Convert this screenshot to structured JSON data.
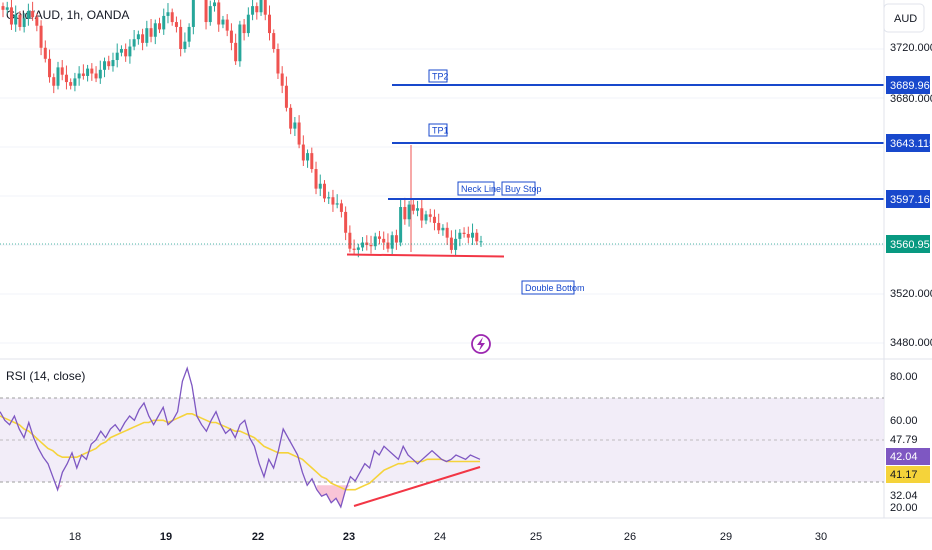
{
  "header": {
    "symbol_line": "Gold/AUD, 1h, OANDA",
    "currency": "AUD"
  },
  "colors": {
    "up": "#26a69a",
    "down": "#ef5350",
    "level": "#1848cc",
    "neckline_support": "#f23645",
    "current_price_bg": "#089981",
    "rsi_line": "#7e57c2",
    "rsi_ma": "#f5d33a",
    "rsi_band": "#ede7f6",
    "rsi_oversold_fill": "#f8bbd0",
    "icon": "#9c27b0"
  },
  "icons": {
    "flash": "lightning-bolt-icon"
  },
  "chart_data": [
    {
      "type": "candlestick",
      "title": "Gold/AUD, 1h, OANDA",
      "y_tick_labels": [
        "3720.000",
        "3680.000",
        "3520.000",
        "3480.000"
      ],
      "ylim": [
        3470,
        3770
      ],
      "current_price": "3560.954",
      "levels": [
        {
          "name": "TP2",
          "value": "3689.965"
        },
        {
          "name": "TP1",
          "value": "3643.115"
        },
        {
          "name": "Neck Line",
          "value": "3597.166",
          "extra_label": "Buy Stop"
        }
      ],
      "annotations": [
        "Double Bottom"
      ],
      "support_line_value": 3551,
      "close_series": [
        3752,
        3754,
        3740,
        3748,
        3738,
        3745,
        3751,
        3746,
        3739,
        3721,
        3712,
        3697,
        3690,
        3705,
        3699,
        3693,
        3690,
        3696,
        3700,
        3698,
        3704,
        3700,
        3696,
        3703,
        3710,
        3706,
        3711,
        3717,
        3720,
        3714,
        3722,
        3728,
        3732,
        3725,
        3737,
        3730,
        3741,
        3736,
        3747,
        3750,
        3742,
        3738,
        3720,
        3726,
        3738,
        3785,
        3803,
        3775,
        3742,
        3755,
        3758,
        3740,
        3744,
        3735,
        3725,
        3710,
        3740,
        3733,
        3748,
        3755,
        3750,
        3760,
        3748,
        3733,
        3720,
        3700,
        3690,
        3672,
        3655,
        3660,
        3642,
        3629,
        3635,
        3622,
        3606,
        3610,
        3598,
        3599,
        3593,
        3594,
        3587,
        3570,
        3557,
        3556,
        3558,
        3562,
        3560,
        3559,
        3567,
        3565,
        3562,
        3557,
        3568,
        3562,
        3591,
        3581,
        3593,
        3588,
        3590,
        3580,
        3585,
        3583,
        3578,
        3572,
        3574,
        3566,
        3556,
        3565,
        3570,
        3569,
        3566,
        3570,
        3563,
        3563
      ]
    },
    {
      "type": "line",
      "title": "RSI (14, close)",
      "y_tick_labels": [
        "80.00",
        "60.00",
        "47.79",
        "42.04",
        "41.17",
        "32.04",
        "20.00"
      ],
      "ylim": [
        19,
        86
      ],
      "band": [
        30,
        70
      ],
      "rsi_value": "42.04",
      "ma_value": "41.17",
      "rsi_series": [
        64,
        60,
        58,
        62,
        56,
        52,
        59,
        52,
        47,
        43,
        40,
        34,
        28,
        36,
        40,
        45,
        38,
        44,
        42,
        49,
        51,
        55,
        52,
        56,
        58,
        55,
        59,
        62,
        60,
        65,
        68,
        62,
        58,
        62,
        66,
        58,
        60,
        64,
        78,
        84,
        76,
        62,
        58,
        55,
        60,
        64,
        58,
        54,
        56,
        52,
        58,
        60,
        52,
        48,
        40,
        34,
        42,
        38,
        46,
        56,
        52,
        48,
        44,
        36,
        30,
        33,
        28,
        25,
        26,
        22,
        24,
        20,
        28,
        34,
        32,
        36,
        40,
        38,
        46,
        44,
        48,
        46,
        44,
        42,
        48,
        44,
        42,
        40,
        42,
        44,
        46,
        44,
        42,
        41,
        42,
        44,
        43,
        42,
        44,
        43,
        42
      ],
      "ma_series": [
        62,
        61,
        60,
        59,
        58,
        56,
        55,
        53,
        51,
        49,
        47,
        46,
        44,
        43,
        43,
        43,
        43,
        44,
        45,
        46,
        47,
        49,
        50,
        52,
        53,
        54,
        55,
        56,
        57,
        58,
        59,
        59,
        60,
        60,
        60,
        59,
        60,
        61,
        62,
        63,
        63,
        62,
        61,
        60,
        59,
        59,
        58,
        57,
        56,
        55,
        55,
        54,
        53,
        52,
        50,
        48,
        47,
        46,
        45,
        45,
        45,
        44,
        43,
        42,
        40,
        38,
        36,
        34,
        33,
        31,
        30,
        29,
        28,
        28,
        28,
        29,
        30,
        31,
        33,
        35,
        37,
        38,
        39,
        40,
        40,
        41,
        41,
        41,
        41,
        42,
        42,
        42,
        42,
        41,
        41,
        41,
        41,
        41,
        41,
        41,
        41
      ],
      "divergence_line": "rsi-bullish-divergence"
    }
  ],
  "x_axis": {
    "labels": [
      "18",
      "19",
      "22",
      "23",
      "24",
      "25",
      "26",
      "29",
      "30"
    ],
    "bold_labels": [
      "19",
      "22",
      "23"
    ]
  }
}
